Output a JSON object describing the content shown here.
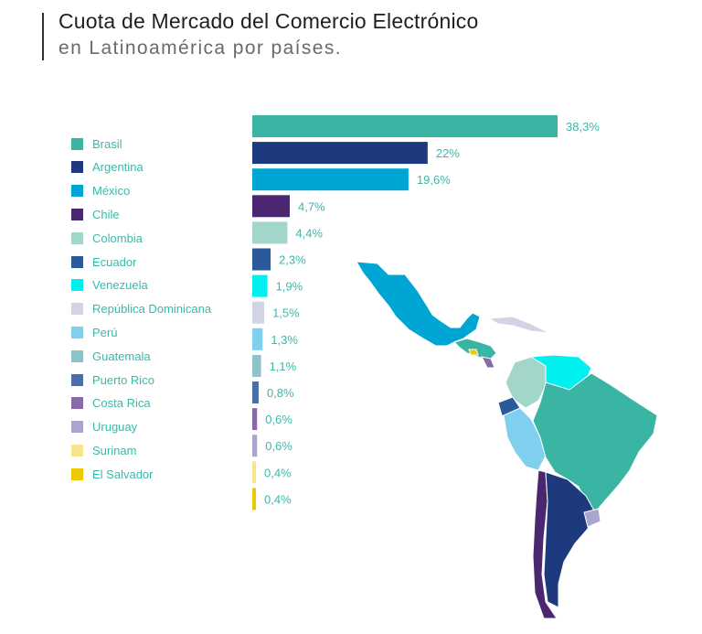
{
  "header": {
    "title": "Cuota de Mercado del Comercio Electrónico",
    "subtitle": "en Latinoamérica por países."
  },
  "chart_data": {
    "type": "bar",
    "orientation": "horizontal",
    "title": "Cuota de Mercado del Comercio Electrónico",
    "subtitle": "en Latinoamérica por países.",
    "xlabel": "",
    "ylabel": "",
    "unit": "%",
    "legend_position": "left",
    "grid": false,
    "xlim": [
      0,
      38.3
    ],
    "categories": [
      "Brasil",
      "Argentina",
      "México",
      "Chile",
      "Colombia",
      "Ecuador",
      "Venezuela",
      "República Dominicana",
      "Perú",
      "Guatemala",
      "Puerto Rico",
      "Costa Rica",
      "Uruguay",
      "Surinam",
      "El Salvador"
    ],
    "values": [
      38.3,
      22,
      19.6,
      4.7,
      4.4,
      2.3,
      1.9,
      1.5,
      1.3,
      1.1,
      0.8,
      0.6,
      0.6,
      0.4,
      0.4
    ],
    "value_labels": [
      "38,3%",
      "22%",
      "19,6%",
      "4,7%",
      "4,4%",
      "2,3%",
      "1,9%",
      "1,5%",
      "1,3%",
      "1,1%",
      "0,8%",
      "0,6%",
      "0,6%",
      "0,4%",
      "0,4%"
    ],
    "colors": [
      "#3ab5a3",
      "#1e3a7e",
      "#00a6d3",
      "#4a2770",
      "#a3d6cb",
      "#2a5a9a",
      "#00f0f0",
      "#d2d3e4",
      "#7fcfef",
      "#8cc3cb",
      "#4a6fa6",
      "#8a6aa6",
      "#a8a6cc",
      "#f7e58e",
      "#f0c800"
    ]
  },
  "map": {
    "icon": "latin-america-map-icon",
    "region_colors": {
      "mexico": "#00a6d3",
      "central_america": "#3ab5a3",
      "colombia": "#a3d6cb",
      "venezuela": "#00f0f0",
      "ecuador": "#2a5a9a",
      "peru": "#7fcfef",
      "brazil": "#3ab5a3",
      "chile": "#4a2770",
      "argentina": "#1e3a7e",
      "uruguay": "#a8a6cc",
      "caribbean": "#d2d3e4",
      "el_salvador": "#f0c800",
      "costa_rica": "#8a6aa6"
    }
  }
}
